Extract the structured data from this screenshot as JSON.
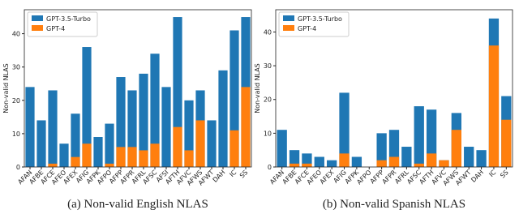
{
  "chart_data": [
    {
      "type": "bar",
      "barmode": "overlay",
      "caption": "(a) Non-valid English NLAS",
      "ylabel": "Non-valid NLAS",
      "categories": [
        "AFAN",
        "AFBE",
        "AFCE",
        "AFEO",
        "AFEX",
        "AFIG",
        "AFPK",
        "AFPO",
        "AFPP",
        "AFPR",
        "AFRL",
        "AFSC",
        "AFSI",
        "AFTH",
        "AFVC",
        "AFWS",
        "AFWT",
        "DAH",
        "IC",
        "SS"
      ],
      "series": [
        {
          "name": "GPT-3.5-Turbo",
          "color": "#1f77b4",
          "values": [
            24,
            14,
            23,
            7,
            16,
            36,
            9,
            13,
            27,
            23,
            28,
            34,
            24,
            45,
            20,
            23,
            14,
            29,
            41,
            45
          ]
        },
        {
          "name": "GPT-4",
          "color": "#ff7f0e",
          "values": [
            0,
            0,
            1,
            0,
            3,
            7,
            0,
            1,
            6,
            6,
            5,
            7,
            0,
            12,
            5,
            14,
            0,
            0,
            11,
            24
          ]
        }
      ],
      "ylim": [
        0,
        47.2
      ],
      "yticks": [
        0,
        10,
        20,
        30,
        40
      ],
      "legend": "upper left"
    },
    {
      "type": "bar",
      "barmode": "overlay",
      "caption": "(b) Non-valid Spanish NLAS",
      "ylabel": "Non-valid NLAS",
      "categories": [
        "AFAN",
        "AFBE",
        "AFCE",
        "AFEO",
        "AFEX",
        "AFIG",
        "AFPK",
        "AFPO",
        "AFPP",
        "AFPR",
        "AFRL",
        "AFSC",
        "AFTH",
        "AFVC",
        "AFWS",
        "AFWT",
        "DAH",
        "IC",
        "SS"
      ],
      "series": [
        {
          "name": "GPT-3.5-Turbo",
          "color": "#1f77b4",
          "values": [
            11,
            5,
            4,
            3,
            2,
            22,
            3,
            0,
            10,
            11,
            6,
            18,
            17,
            2,
            16,
            6,
            5,
            44,
            21
          ]
        },
        {
          "name": "GPT-4",
          "color": "#ff7f0e",
          "values": [
            0,
            1,
            1,
            0,
            0,
            4,
            0,
            0,
            2,
            3,
            0,
            1,
            4,
            2,
            11,
            0,
            0,
            36,
            14
          ]
        }
      ],
      "ylim": [
        0,
        46.6
      ],
      "yticks": [
        0,
        10,
        20,
        30,
        40
      ],
      "legend": "upper left"
    }
  ]
}
